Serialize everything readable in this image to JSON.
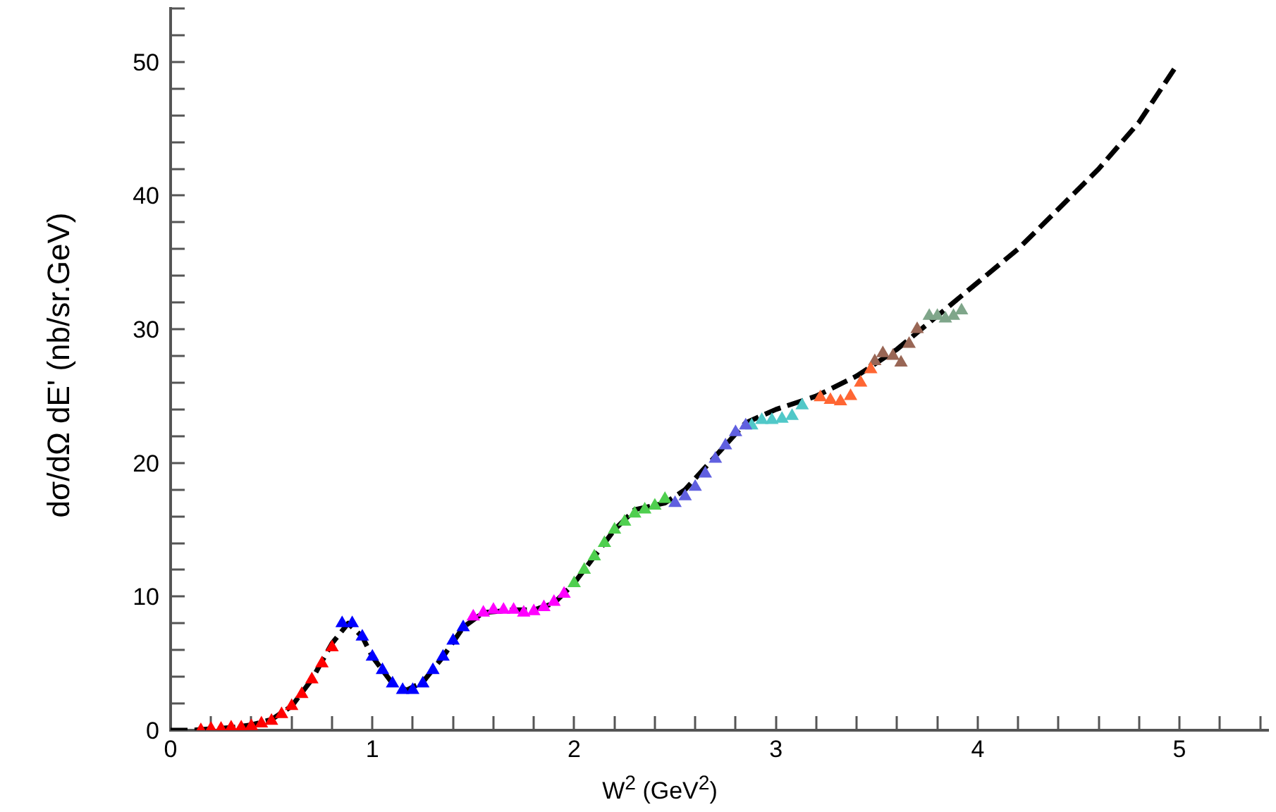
{
  "chart_data": {
    "type": "scatter",
    "xlabel": "W$^{2}$ (GeV$^{2}$)",
    "ylabel": "dσ/dΩ dE' (nb/sr.GeV)",
    "xlim": [
      0,
      5.44
    ],
    "ylim": [
      0,
      54
    ],
    "xticks": [
      0,
      {
        "value": 0.2,
        "label": null
      },
      {
        "value": 0.4,
        "label": null
      },
      {
        "value": 0.6,
        "label": null
      },
      {
        "value": 0.8,
        "label": null
      },
      1,
      {
        "value": 1.2,
        "label": null
      },
      {
        "value": 1.4,
        "label": null
      },
      {
        "value": 1.6,
        "label": null
      },
      {
        "value": 1.8,
        "label": null
      },
      2,
      {
        "value": 2.2,
        "label": null
      },
      {
        "value": 2.4,
        "label": null
      },
      {
        "value": 2.6,
        "label": null
      },
      {
        "value": 2.8,
        "label": null
      },
      3,
      {
        "value": 3.2,
        "label": null
      },
      {
        "value": 3.4,
        "label": null
      },
      {
        "value": 3.6,
        "label": null
      },
      {
        "value": 3.8,
        "label": null
      },
      4,
      {
        "value": 4.2,
        "label": null
      },
      {
        "value": 4.4,
        "label": null
      },
      {
        "value": 4.6,
        "label": null
      },
      {
        "value": 4.8,
        "label": null
      },
      5,
      {
        "value": 5.2,
        "label": null
      },
      {
        "value": 5.4,
        "label": null
      }
    ],
    "yticks": [
      0,
      {
        "value": 2,
        "label": null
      },
      {
        "value": 4,
        "label": null
      },
      {
        "value": 6,
        "label": null
      },
      {
        "value": 8,
        "label": null
      },
      10,
      {
        "value": 12,
        "label": null
      },
      {
        "value": 14,
        "label": null
      },
      {
        "value": 16,
        "label": null
      },
      {
        "value": 18,
        "label": null
      },
      20,
      {
        "value": 22,
        "label": null
      },
      {
        "value": 24,
        "label": null
      },
      {
        "value": 26,
        "label": null
      },
      {
        "value": 28,
        "label": null
      },
      30,
      {
        "value": 32,
        "label": null
      },
      {
        "value": 34,
        "label": null
      },
      {
        "value": 36,
        "label": null
      },
      {
        "value": 38,
        "label": null
      },
      40,
      {
        "value": 42,
        "label": null
      },
      {
        "value": 44,
        "label": null
      },
      {
        "value": 46,
        "label": null
      },
      {
        "value": 48,
        "label": null
      },
      50,
      {
        "value": 52,
        "label": null
      },
      {
        "value": 54,
        "label": null
      }
    ],
    "grid": false,
    "legend": false,
    "series": [
      {
        "type": "line",
        "color": "#000000",
        "line_style": "dashed",
        "marker": "none",
        "x": [
          0,
          0.1,
          0.2,
          0.3,
          0.4,
          0.5,
          0.6,
          0.7,
          0.8,
          0.88,
          0.95,
          1.0,
          1.1,
          1.17,
          1.25,
          1.35,
          1.45,
          1.55,
          1.7,
          1.8,
          1.9,
          2.0,
          2.1,
          2.2,
          2.3,
          2.45,
          2.55,
          2.7,
          2.85,
          3.0,
          3.2,
          3.4,
          3.6,
          3.8,
          4.0,
          4.2,
          4.4,
          4.6,
          4.8,
          4.98
        ],
        "values": [
          0,
          0,
          0.1,
          0.2,
          0.4,
          0.8,
          1.8,
          3.8,
          6.5,
          8,
          7,
          5.5,
          3.5,
          3,
          3.6,
          5.5,
          7.7,
          8.8,
          9,
          9,
          9.5,
          11,
          13,
          15,
          16.5,
          17,
          18,
          20.5,
          23,
          24,
          25,
          26.5,
          28.5,
          31,
          33.5,
          36,
          39,
          42,
          45.5,
          49.6
        ]
      },
      {
        "type": "scatter",
        "color": "#ff0000",
        "marker": "triangle",
        "x": [
          0.15,
          0.2,
          0.25,
          0.3,
          0.35,
          0.4,
          0.45,
          0.5,
          0.55,
          0.6,
          0.65,
          0.7,
          0.75,
          0.8
        ],
        "values": [
          0,
          0.1,
          0.1,
          0.2,
          0.2,
          0.3,
          0.5,
          0.7,
          1.2,
          1.8,
          2.7,
          3.8,
          5,
          6.2
        ]
      },
      {
        "type": "scatter",
        "color": "#0000ff",
        "marker": "triangle",
        "x": [
          0.85,
          0.9,
          0.95,
          1.0,
          1.05,
          1.1,
          1.15,
          1.2,
          1.25,
          1.3,
          1.35,
          1.4,
          1.45
        ],
        "values": [
          8,
          8,
          7,
          5.5,
          4.5,
          3.5,
          3,
          3,
          3.5,
          4.5,
          5.5,
          6.7,
          7.7
        ]
      },
      {
        "type": "scatter",
        "color": "#ff00ff",
        "marker": "triangle",
        "x": [
          1.5,
          1.55,
          1.6,
          1.65,
          1.7,
          1.75,
          1.8,
          1.85,
          1.9,
          1.95
        ],
        "values": [
          8.5,
          8.8,
          9,
          9,
          9,
          8.8,
          8.9,
          9.2,
          9.6,
          10.2
        ]
      },
      {
        "type": "scatter",
        "color": "#4fcf4f",
        "marker": "triangle",
        "x": [
          2.0,
          2.05,
          2.1,
          2.15,
          2.2,
          2.25,
          2.3,
          2.35,
          2.4,
          2.45
        ],
        "values": [
          11,
          12,
          13,
          14,
          15,
          15.6,
          16.2,
          16.5,
          16.8,
          17.3
        ]
      },
      {
        "type": "scatter",
        "color": "#6060e0",
        "marker": "triangle",
        "x": [
          2.5,
          2.55,
          2.6,
          2.65,
          2.7,
          2.75,
          2.8,
          2.85
        ],
        "values": [
          17,
          17.5,
          18.2,
          19.2,
          20.3,
          21.3,
          22.3,
          22.8
        ]
      },
      {
        "type": "scatter",
        "color": "#50c8c8",
        "marker": "triangle",
        "x": [
          2.88,
          2.93,
          2.98,
          3.03,
          3.08,
          3.13
        ],
        "values": [
          22.8,
          23.2,
          23.2,
          23.3,
          23.5,
          24.3
        ]
      },
      {
        "type": "scatter",
        "color": "#ff6633",
        "marker": "triangle",
        "x": [
          3.22,
          3.27,
          3.32,
          3.37,
          3.42,
          3.47
        ],
        "values": [
          24.9,
          24.7,
          24.6,
          25,
          26,
          27
        ]
      },
      {
        "type": "scatter",
        "color": "#996655",
        "marker": "triangle",
        "x": [
          3.49,
          3.53,
          3.58,
          3.62,
          3.66,
          3.7
        ],
        "values": [
          27.6,
          28.2,
          28,
          27.5,
          28.9,
          30
        ]
      },
      {
        "type": "scatter",
        "color": "#7fa68a",
        "marker": "triangle",
        "x": [
          3.76,
          3.8,
          3.84,
          3.88,
          3.92
        ],
        "values": [
          31,
          31,
          30.8,
          31,
          31.4
        ]
      }
    ]
  }
}
